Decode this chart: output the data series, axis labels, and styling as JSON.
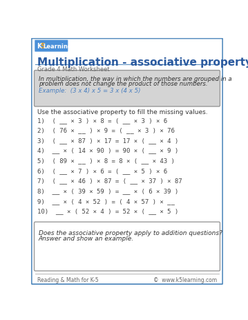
{
  "title": "Multiplication - associative property",
  "subtitle": "Grade 4 Math Worksheet",
  "definition_lines": [
    "In multiplication, the way in which the numbers are grouped in a",
    "problem does not change the product of those numbers."
  ],
  "example_line": "Example:  (3 x 4) x 5 = 3 x (4 x 5)",
  "instruction": "Use the associative property to fill the missing values.",
  "problems": [
    "1)  ( __ × 3 ) × 8 = ( __ × 3 ) × 6",
    "2)  ( 76 × __ ) × 9 = ( __ × 3 ) × 76",
    "3)  ( __ × 87 ) × 17 = 17 × ( __ × 4 )",
    "4)  __ × ( 14 × 90 ) = 90 × ( __ × 9 )",
    "5)  ( 89 × __ ) × 8 = 8 × ( __ × 43 )",
    "6)  ( __ × 7 ) × 6 = ( __ × 5 ) × 6",
    "7)  ( __ × 46 ) × 87 = ( __ × 37 ) × 87",
    "8)  __ × ( 39 × 59 ) = __ × ( 6 × 39 )",
    "9)  __ × ( 4 × 52 ) = ( 4 × 57 ) × __",
    "10)  __ × ( 52 × 4 ) = 52 × ( __ × 5 )"
  ],
  "bottom_box_lines": [
    "Does the associative property apply to addition questions?",
    "Answer and show an example."
  ],
  "footer_left": "Reading & Math for K-5",
  "footer_right": "©  www.k5learning.com",
  "border_color": "#5a8fc0",
  "title_color": "#2a5a9f",
  "def_box_color": "#d4d4d4",
  "example_color": "#4a7fc0",
  "text_color": "#333333",
  "problem_color": "#444444",
  "subtitle_color": "#666666",
  "footer_color": "#666666"
}
